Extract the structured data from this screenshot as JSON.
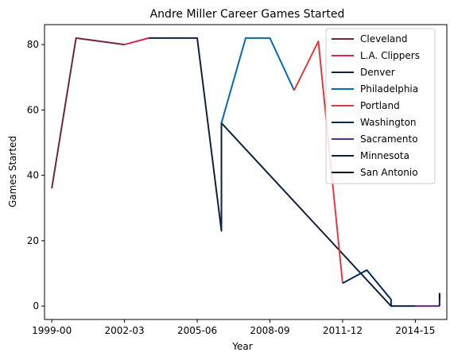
{
  "chart_data": {
    "type": "line",
    "title": "Andre Miller Career Games Started",
    "xlabel": "Year",
    "ylabel": "Games Started",
    "x_tick_labels": [
      "1999-00",
      "2002-03",
      "2005-06",
      "2008-09",
      "2011-12",
      "2014-15"
    ],
    "x_tick_indices": [
      0,
      3,
      6,
      9,
      12,
      15
    ],
    "y_ticks": [
      0,
      20,
      40,
      60,
      80
    ],
    "xlim": [
      -0.3,
      16.3
    ],
    "ylim": [
      -4.1,
      86.1
    ],
    "legend_position": "top-right",
    "series": [
      {
        "name": "Cleveland",
        "color": "#6f263d",
        "points": [
          [
            0,
            36
          ],
          [
            1,
            82
          ],
          [
            3,
            80
          ]
        ]
      },
      {
        "name": "L.A. Clippers",
        "color": "#e0224f",
        "points": [
          [
            3,
            80
          ],
          [
            4,
            82
          ]
        ]
      },
      {
        "name": "Denver",
        "color": "#0e2240",
        "points": [
          [
            4,
            82
          ],
          [
            5,
            82
          ],
          [
            6,
            82
          ],
          [
            7,
            23
          ],
          [
            7,
            56
          ],
          [
            14,
            0
          ],
          [
            15,
            0
          ]
        ]
      },
      {
        "name": "Philadelphia",
        "color": "#006bb6",
        "points": [
          [
            7,
            56
          ],
          [
            8,
            82
          ],
          [
            9,
            82
          ],
          [
            10,
            66
          ]
        ]
      },
      {
        "name": "Portland",
        "color": "#e03a3e",
        "points": [
          [
            10,
            66
          ],
          [
            11,
            81
          ],
          [
            12,
            7
          ]
        ]
      },
      {
        "name": "Washington",
        "color": "#002b5c",
        "points": [
          [
            12,
            7
          ],
          [
            13,
            11
          ],
          [
            14,
            2
          ],
          [
            14,
            0
          ]
        ]
      },
      {
        "name": "Sacramento",
        "color": "#5a2d81",
        "points": [
          [
            15,
            0
          ],
          [
            16,
            0
          ]
        ]
      },
      {
        "name": "Minnesota",
        "color": "#0c2340",
        "points": [
          [
            16,
            0
          ],
          [
            16,
            2
          ]
        ]
      },
      {
        "name": "San Antonio",
        "color": "#000000",
        "points": [
          [
            16,
            2
          ],
          [
            16,
            4
          ]
        ]
      }
    ]
  }
}
